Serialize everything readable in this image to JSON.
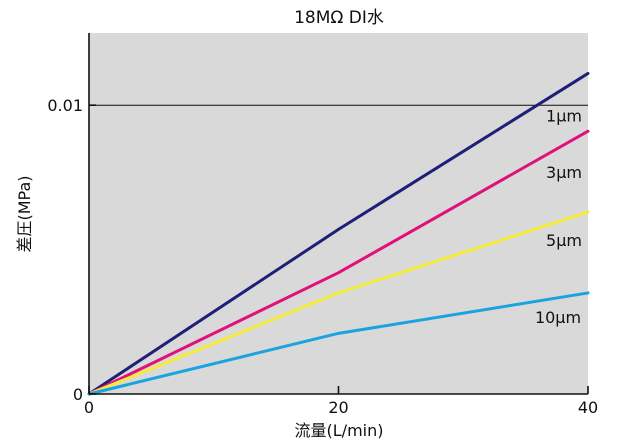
{
  "chart_data": {
    "type": "line",
    "title": "18MΩ DI水",
    "xlabel": "流量(L/min)",
    "ylabel": "差圧(MPa)",
    "xlim": [
      0,
      40
    ],
    "ylim": [
      0,
      0.0125
    ],
    "xticks": [
      {
        "value": 0,
        "label": "0"
      },
      {
        "value": 20,
        "label": "20"
      },
      {
        "value": 40,
        "label": "40"
      }
    ],
    "yticks": [
      {
        "value": 0,
        "label": "0"
      },
      {
        "value": 0.01,
        "label": "0.01"
      }
    ],
    "gridlines_y": [
      0.01
    ],
    "plot_background": "#d9d9d9",
    "legend": "inline labels at right end of each line",
    "series": [
      {
        "label": "1μm",
        "color": "#1f1f7a",
        "x": [
          0,
          20,
          40
        ],
        "y": [
          0,
          0.0057,
          0.0111
        ]
      },
      {
        "label": "3μm",
        "color": "#e0117a",
        "x": [
          0,
          20,
          40
        ],
        "y": [
          0,
          0.0042,
          0.0091
        ]
      },
      {
        "label": "5μm",
        "color": "#f5ec3a",
        "x": [
          0,
          20,
          40
        ],
        "y": [
          0,
          0.0035,
          0.0063
        ]
      },
      {
        "label": "10μm",
        "color": "#1aa3e0",
        "x": [
          0,
          20,
          40
        ],
        "y": [
          0,
          0.0021,
          0.0035
        ]
      }
    ]
  }
}
